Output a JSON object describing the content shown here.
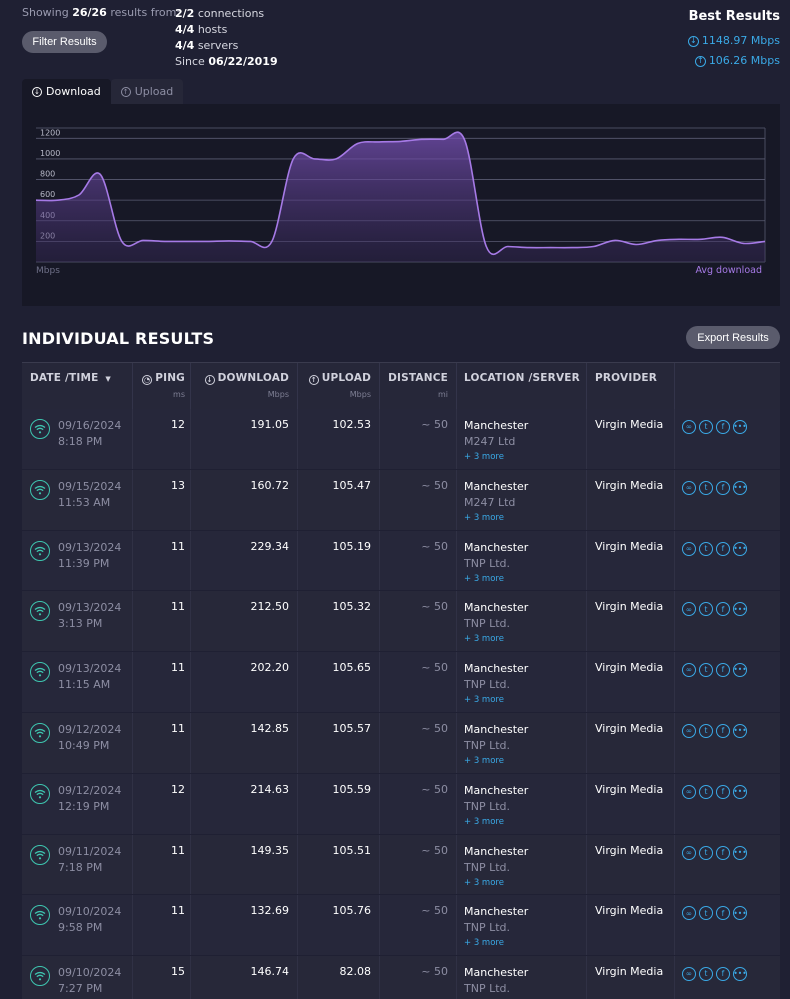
{
  "summary": {
    "showing_prefix": "Showing",
    "showing_count": "26/26",
    "showing_suffix": "results from:",
    "filter_button": "Filter Results",
    "stats": [
      {
        "value": "2/2",
        "label": "connections"
      },
      {
        "value": "4/4",
        "label": "hosts"
      },
      {
        "value": "4/4",
        "label": "servers"
      },
      {
        "value": "06/22/2019",
        "label": "Since"
      }
    ]
  },
  "best_results": {
    "title": "Best Results",
    "download": "1148.97 Mbps",
    "upload": "106.26 Mbps"
  },
  "chart_tabs": {
    "download": "Download",
    "upload": "Upload",
    "active": "download"
  },
  "chart_data": {
    "type": "area",
    "series": [
      {
        "name": "Avg download",
        "color": "#9b6fd6",
        "values": [
          600,
          600,
          650,
          850,
          200,
          210,
          200,
          200,
          200,
          205,
          200,
          200,
          1000,
          1000,
          1000,
          1150,
          1165,
          1170,
          1190,
          1190,
          1180,
          150,
          150,
          140,
          140,
          140,
          150,
          210,
          170,
          210,
          220,
          220,
          240,
          180,
          200
        ]
      }
    ],
    "xlabel": "",
    "ylabel": "Mbps",
    "yticks": [
      200,
      400,
      600,
      800,
      1000,
      1200
    ],
    "ylim": [
      0,
      1300
    ],
    "grid": true,
    "legend": "bottom-right"
  },
  "results": {
    "heading": "INDIVIDUAL RESULTS",
    "export_button": "Export Results",
    "columns": {
      "date": {
        "label": "DATE /TIME",
        "sort": "▼"
      },
      "ping": {
        "label": "PING",
        "unit": "ms"
      },
      "download": {
        "label": "DOWNLOAD",
        "unit": "Mbps"
      },
      "upload": {
        "label": "UPLOAD",
        "unit": "Mbps"
      },
      "distance": {
        "label": "DISTANCE",
        "unit": "mi"
      },
      "location": {
        "label": "LOCATION /SERVER"
      },
      "provider": {
        "label": "PROVIDER"
      }
    },
    "rows": [
      {
        "date": "09/16/2024",
        "time": "8:18 PM",
        "ping": "12",
        "download": "191.05",
        "upload": "102.53",
        "distance": "~ 50",
        "city": "Manchester",
        "host": "M247 Ltd",
        "more": "+ 3 more",
        "provider": "Virgin Media"
      },
      {
        "date": "09/15/2024",
        "time": "11:53 AM",
        "ping": "13",
        "download": "160.72",
        "upload": "105.47",
        "distance": "~ 50",
        "city": "Manchester",
        "host": "M247 Ltd",
        "more": "+ 3 more",
        "provider": "Virgin Media"
      },
      {
        "date": "09/13/2024",
        "time": "11:39 PM",
        "ping": "11",
        "download": "229.34",
        "upload": "105.19",
        "distance": "~ 50",
        "city": "Manchester",
        "host": "TNP Ltd.",
        "more": "+ 3 more",
        "provider": "Virgin Media"
      },
      {
        "date": "09/13/2024",
        "time": "3:13 PM",
        "ping": "11",
        "download": "212.50",
        "upload": "105.32",
        "distance": "~ 50",
        "city": "Manchester",
        "host": "TNP Ltd.",
        "more": "+ 3 more",
        "provider": "Virgin Media"
      },
      {
        "date": "09/13/2024",
        "time": "11:15 AM",
        "ping": "11",
        "download": "202.20",
        "upload": "105.65",
        "distance": "~ 50",
        "city": "Manchester",
        "host": "TNP Ltd.",
        "more": "+ 3 more",
        "provider": "Virgin Media"
      },
      {
        "date": "09/12/2024",
        "time": "10:49 PM",
        "ping": "11",
        "download": "142.85",
        "upload": "105.57",
        "distance": "~ 50",
        "city": "Manchester",
        "host": "TNP Ltd.",
        "more": "+ 3 more",
        "provider": "Virgin Media"
      },
      {
        "date": "09/12/2024",
        "time": "12:19 PM",
        "ping": "12",
        "download": "214.63",
        "upload": "105.59",
        "distance": "~ 50",
        "city": "Manchester",
        "host": "TNP Ltd.",
        "more": "+ 3 more",
        "provider": "Virgin Media"
      },
      {
        "date": "09/11/2024",
        "time": "7:18 PM",
        "ping": "11",
        "download": "149.35",
        "upload": "105.51",
        "distance": "~ 50",
        "city": "Manchester",
        "host": "TNP Ltd.",
        "more": "+ 3 more",
        "provider": "Virgin Media"
      },
      {
        "date": "09/10/2024",
        "time": "9:58 PM",
        "ping": "11",
        "download": "132.69",
        "upload": "105.76",
        "distance": "~ 50",
        "city": "Manchester",
        "host": "TNP Ltd.",
        "more": "+ 3 more",
        "provider": "Virgin Media"
      },
      {
        "date": "09/10/2024",
        "time": "7:27 PM",
        "ping": "15",
        "download": "146.74",
        "upload": "82.08",
        "distance": "~ 50",
        "city": "Manchester",
        "host": "TNP Ltd.",
        "more": "",
        "provider": "Virgin Media"
      }
    ]
  },
  "share_icons": [
    "link-icon",
    "twitter-icon",
    "facebook-icon",
    "more-icon"
  ]
}
